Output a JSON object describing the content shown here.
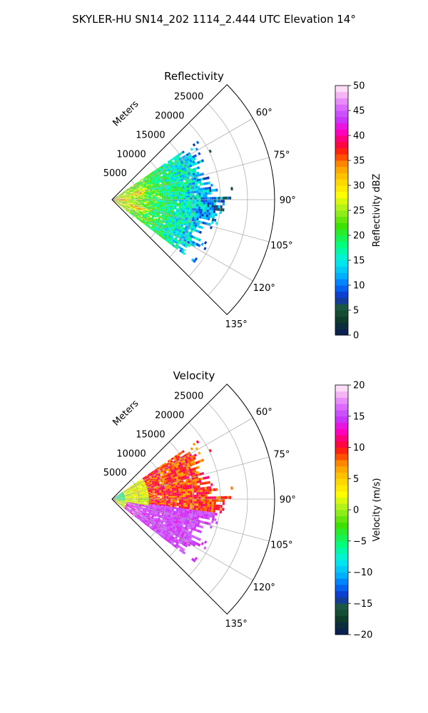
{
  "title": "SKYLER-HU  SN14_202  1114_2.444 UTC Elevation 14°",
  "chart_data": [
    {
      "type": "heatmap",
      "subtype": "polar-sector",
      "title": "Reflectivity",
      "radial_label": "Meters",
      "radial_ticks": [
        5000,
        10000,
        15000,
        20000,
        25000
      ],
      "radial_tick_labels": [
        "5000",
        "10000",
        "15000",
        "20000",
        "25000"
      ],
      "rlim": [
        0,
        30000
      ],
      "azimuth_range_deg": [
        45,
        135
      ],
      "azimuth_ticks": [
        60,
        75,
        90,
        105,
        120,
        135
      ],
      "azimuth_tick_labels": [
        "60°",
        "75°",
        "90°",
        "105°",
        "120°",
        "135°"
      ],
      "grid": true,
      "colorbar": {
        "label": "Reflectivity dBZ",
        "range": [
          0,
          50
        ],
        "ticks": [
          0,
          5,
          10,
          15,
          20,
          25,
          30,
          35,
          40,
          45,
          50
        ],
        "tick_labels": [
          "0",
          "5",
          "10",
          "15",
          "20",
          "25",
          "30",
          "35",
          "40",
          "45",
          "50"
        ],
        "stops": [
          [
            0,
            "#0a1a5a"
          ],
          [
            0.06,
            "#0d3a2a"
          ],
          [
            0.11,
            "#1c5a3c"
          ],
          [
            0.15,
            "#1030c0"
          ],
          [
            0.2,
            "#0070ff"
          ],
          [
            0.24,
            "#00b4ff"
          ],
          [
            0.3,
            "#00f0e8"
          ],
          [
            0.36,
            "#00ff80"
          ],
          [
            0.44,
            "#40e000"
          ],
          [
            0.5,
            "#a0f020"
          ],
          [
            0.56,
            "#ffff00"
          ],
          [
            0.62,
            "#ffd200"
          ],
          [
            0.68,
            "#ff9600"
          ],
          [
            0.73,
            "#ff2a00"
          ],
          [
            0.77,
            "#ff0050"
          ],
          [
            0.82,
            "#ff00d0"
          ],
          [
            0.87,
            "#c040ff"
          ],
          [
            0.92,
            "#e070ff"
          ],
          [
            0.96,
            "#f4b0f4"
          ],
          [
            1,
            "#fff0fa"
          ]
        ]
      },
      "field": "reflectivity"
    },
    {
      "type": "heatmap",
      "subtype": "polar-sector",
      "title": "Velocity",
      "radial_label": "Meters",
      "radial_ticks": [
        5000,
        10000,
        15000,
        20000,
        25000
      ],
      "radial_tick_labels": [
        "5000",
        "10000",
        "15000",
        "20000",
        "25000"
      ],
      "rlim": [
        0,
        30000
      ],
      "azimuth_range_deg": [
        45,
        135
      ],
      "azimuth_ticks": [
        60,
        75,
        90,
        105,
        120,
        135
      ],
      "azimuth_tick_labels": [
        "60°",
        "75°",
        "90°",
        "105°",
        "120°",
        "135°"
      ],
      "grid": true,
      "colorbar": {
        "label": "Velocity (m/s)",
        "range": [
          -20,
          20
        ],
        "ticks": [
          -20,
          -15,
          -10,
          -5,
          0,
          5,
          10,
          15,
          20
        ],
        "tick_labels": [
          "−20",
          "−15",
          "−10",
          "−5",
          "0",
          "5",
          "10",
          "15",
          "20"
        ],
        "stops": [
          [
            0,
            "#0a1a5a"
          ],
          [
            0.06,
            "#0d3a2a"
          ],
          [
            0.11,
            "#1c5a3c"
          ],
          [
            0.15,
            "#1030c0"
          ],
          [
            0.2,
            "#0070ff"
          ],
          [
            0.24,
            "#00b4ff"
          ],
          [
            0.3,
            "#00f0e8"
          ],
          [
            0.36,
            "#00ff80"
          ],
          [
            0.44,
            "#40e000"
          ],
          [
            0.5,
            "#a0f020"
          ],
          [
            0.56,
            "#ffff00"
          ],
          [
            0.62,
            "#ffd200"
          ],
          [
            0.68,
            "#ff9600"
          ],
          [
            0.73,
            "#ff2a00"
          ],
          [
            0.77,
            "#ff0050"
          ],
          [
            0.82,
            "#ff00d0"
          ],
          [
            0.87,
            "#c040ff"
          ],
          [
            0.92,
            "#e070ff"
          ],
          [
            0.96,
            "#f4b0f4"
          ],
          [
            1,
            "#fff0fa"
          ]
        ]
      },
      "field": "velocity"
    }
  ]
}
